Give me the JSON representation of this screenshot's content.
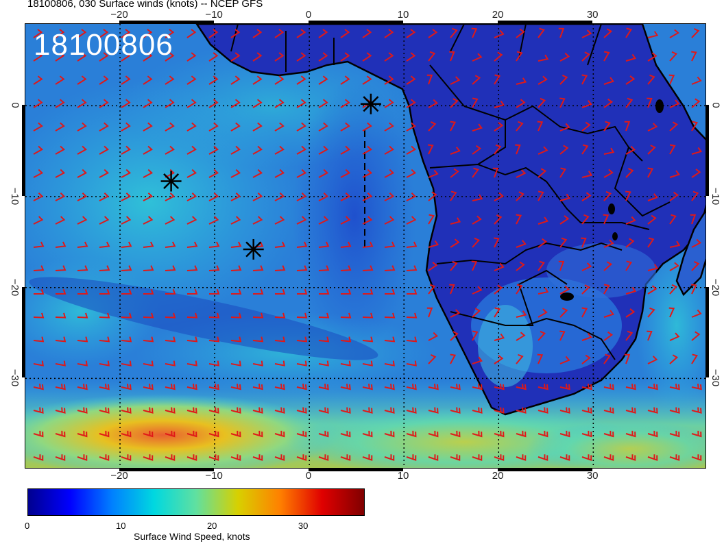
{
  "title": "18100806, 030 Surface winds (knots) -- NCEP GFS",
  "stamp": "18100806",
  "lon_axis": {
    "top_labels": [
      "−20",
      "−10",
      "0",
      "10",
      "20",
      "30"
    ],
    "bottom_labels": [
      "−20",
      "−10",
      "0",
      "10",
      "20",
      "30"
    ],
    "values": [
      -20,
      -10,
      0,
      10,
      20,
      30
    ],
    "range": [
      -30,
      42
    ]
  },
  "lat_axis": {
    "left_labels": [
      "0",
      "−10",
      "−20",
      "−30"
    ],
    "right_labels": [
      "0",
      "−10",
      "−20",
      "−30"
    ],
    "values": [
      0,
      -10,
      -20,
      -30
    ],
    "range": [
      -40,
      9
    ]
  },
  "markers": [
    {
      "name": "storm-marker",
      "lon": 6.5,
      "lat": 0.2
    },
    {
      "name": "storm-marker",
      "lon": -14.6,
      "lat": -8.3
    },
    {
      "name": "storm-marker",
      "lon": -5.9,
      "lat": -15.8
    }
  ],
  "colorbar": {
    "labels": [
      "0",
      "10",
      "20",
      "30"
    ],
    "values": [
      0,
      10,
      20,
      30
    ],
    "range": [
      0,
      37
    ],
    "title": "Surface Wind Speed, knots",
    "stops": [
      "#00008f",
      "#0000ff",
      "#0080ff",
      "#00d8e0",
      "#60e0a0",
      "#d8d000",
      "#ff8000",
      "#e00000",
      "#800000"
    ]
  },
  "colors": {
    "wind_barb": "#e01818",
    "ocean_base": "#2a7fd8",
    "land_base": "#2030b8",
    "coast": "#000000"
  }
}
